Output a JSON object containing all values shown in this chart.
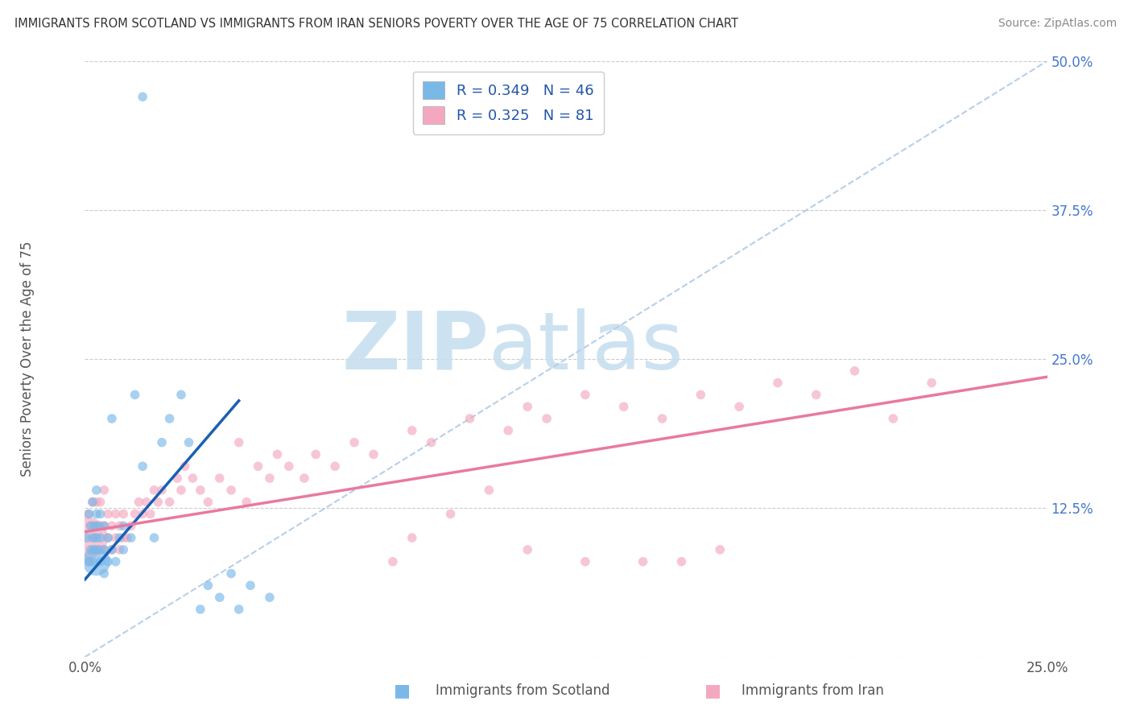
{
  "title": "IMMIGRANTS FROM SCOTLAND VS IMMIGRANTS FROM IRAN SENIORS POVERTY OVER THE AGE OF 75 CORRELATION CHART",
  "source": "Source: ZipAtlas.com",
  "ylabel": "Seniors Poverty Over the Age of 75",
  "xlim": [
    0.0,
    0.25
  ],
  "ylim": [
    0.0,
    0.5
  ],
  "xtick_positions": [
    0.0,
    0.05,
    0.1,
    0.15,
    0.2,
    0.25
  ],
  "xtick_labels": [
    "0.0%",
    "",
    "",
    "",
    "",
    "25.0%"
  ],
  "ytick_positions": [
    0.0,
    0.125,
    0.25,
    0.375,
    0.5
  ],
  "ytick_labels": [
    "",
    "12.5%",
    "25.0%",
    "37.5%",
    "50.0%"
  ],
  "scotland_color": "#7ab8e8",
  "iran_color": "#f4a8bf",
  "scotland_line_color": "#1a5fb4",
  "iran_line_color": "#e87a9f",
  "diag_color": "#b8cfe8",
  "legend_text_color": "#2255aa",
  "background_color": "#ffffff",
  "grid_color": "#cccccc",
  "watermark_color": "#c8dff0",
  "scotland_R": 0.349,
  "scotland_N": 46,
  "iran_R": 0.325,
  "iran_N": 81,
  "scotland_x": [
    0.0005,
    0.001,
    0.001,
    0.0015,
    0.0015,
    0.002,
    0.002,
    0.002,
    0.0025,
    0.0025,
    0.003,
    0.003,
    0.003,
    0.003,
    0.0035,
    0.0035,
    0.004,
    0.004,
    0.004,
    0.005,
    0.005,
    0.005,
    0.006,
    0.006,
    0.007,
    0.007,
    0.008,
    0.009,
    0.01,
    0.01,
    0.012,
    0.013,
    0.015,
    0.015,
    0.018,
    0.02,
    0.022,
    0.025,
    0.027,
    0.03,
    0.032,
    0.035,
    0.038,
    0.04,
    0.043,
    0.048
  ],
  "scotland_y": [
    0.1,
    0.08,
    0.12,
    0.09,
    0.11,
    0.08,
    0.1,
    0.13,
    0.09,
    0.11,
    0.08,
    0.1,
    0.12,
    0.14,
    0.09,
    0.11,
    0.08,
    0.1,
    0.12,
    0.07,
    0.09,
    0.11,
    0.08,
    0.1,
    0.09,
    0.2,
    0.08,
    0.1,
    0.09,
    0.11,
    0.1,
    0.22,
    0.16,
    0.47,
    0.1,
    0.18,
    0.2,
    0.22,
    0.18,
    0.04,
    0.06,
    0.05,
    0.07,
    0.04,
    0.06,
    0.05
  ],
  "scotland_sizes": [
    20,
    20,
    20,
    20,
    20,
    20,
    20,
    20,
    20,
    20,
    180,
    20,
    20,
    20,
    20,
    20,
    20,
    20,
    20,
    20,
    20,
    20,
    20,
    20,
    20,
    20,
    20,
    20,
    20,
    20,
    20,
    20,
    20,
    20,
    20,
    20,
    20,
    20,
    20,
    20,
    20,
    20,
    20,
    20,
    20,
    20
  ],
  "iran_x": [
    0.0005,
    0.001,
    0.001,
    0.0015,
    0.002,
    0.002,
    0.0025,
    0.003,
    0.003,
    0.003,
    0.004,
    0.004,
    0.004,
    0.005,
    0.005,
    0.005,
    0.006,
    0.006,
    0.007,
    0.007,
    0.008,
    0.008,
    0.009,
    0.009,
    0.01,
    0.01,
    0.011,
    0.012,
    0.013,
    0.014,
    0.015,
    0.016,
    0.017,
    0.018,
    0.019,
    0.02,
    0.022,
    0.024,
    0.025,
    0.026,
    0.028,
    0.03,
    0.032,
    0.035,
    0.038,
    0.04,
    0.042,
    0.045,
    0.048,
    0.05,
    0.053,
    0.057,
    0.06,
    0.065,
    0.07,
    0.075,
    0.08,
    0.085,
    0.09,
    0.1,
    0.11,
    0.115,
    0.12,
    0.13,
    0.14,
    0.15,
    0.16,
    0.17,
    0.18,
    0.19,
    0.2,
    0.21,
    0.085,
    0.095,
    0.105,
    0.115,
    0.13,
    0.145,
    0.155,
    0.165,
    0.22
  ],
  "iran_y": [
    0.1,
    0.08,
    0.12,
    0.11,
    0.09,
    0.13,
    0.1,
    0.09,
    0.11,
    0.13,
    0.09,
    0.11,
    0.13,
    0.09,
    0.11,
    0.14,
    0.1,
    0.12,
    0.09,
    0.11,
    0.1,
    0.12,
    0.09,
    0.11,
    0.1,
    0.12,
    0.1,
    0.11,
    0.12,
    0.13,
    0.12,
    0.13,
    0.12,
    0.14,
    0.13,
    0.14,
    0.13,
    0.15,
    0.14,
    0.16,
    0.15,
    0.14,
    0.13,
    0.15,
    0.14,
    0.18,
    0.13,
    0.16,
    0.15,
    0.17,
    0.16,
    0.15,
    0.17,
    0.16,
    0.18,
    0.17,
    0.08,
    0.19,
    0.18,
    0.2,
    0.19,
    0.21,
    0.2,
    0.22,
    0.21,
    0.2,
    0.22,
    0.21,
    0.23,
    0.22,
    0.24,
    0.2,
    0.1,
    0.12,
    0.14,
    0.09,
    0.08,
    0.08,
    0.08,
    0.09,
    0.23
  ],
  "iran_sizes": [
    400,
    20,
    20,
    20,
    20,
    20,
    20,
    20,
    20,
    20,
    20,
    20,
    20,
    20,
    20,
    20,
    20,
    20,
    20,
    20,
    20,
    20,
    20,
    20,
    20,
    20,
    20,
    20,
    20,
    20,
    20,
    20,
    20,
    20,
    20,
    20,
    20,
    20,
    20,
    20,
    20,
    20,
    20,
    20,
    20,
    20,
    20,
    20,
    20,
    20,
    20,
    20,
    20,
    20,
    20,
    20,
    20,
    20,
    20,
    20,
    20,
    20,
    20,
    20,
    20,
    20,
    20,
    20,
    20,
    20,
    20,
    20,
    20,
    20,
    20,
    20,
    20,
    20,
    20,
    20,
    20
  ],
  "scotland_line_x": [
    0.0,
    0.04
  ],
  "scotland_line_y": [
    0.065,
    0.215
  ],
  "iran_line_x": [
    0.0,
    0.25
  ],
  "iran_line_y": [
    0.105,
    0.235
  ]
}
